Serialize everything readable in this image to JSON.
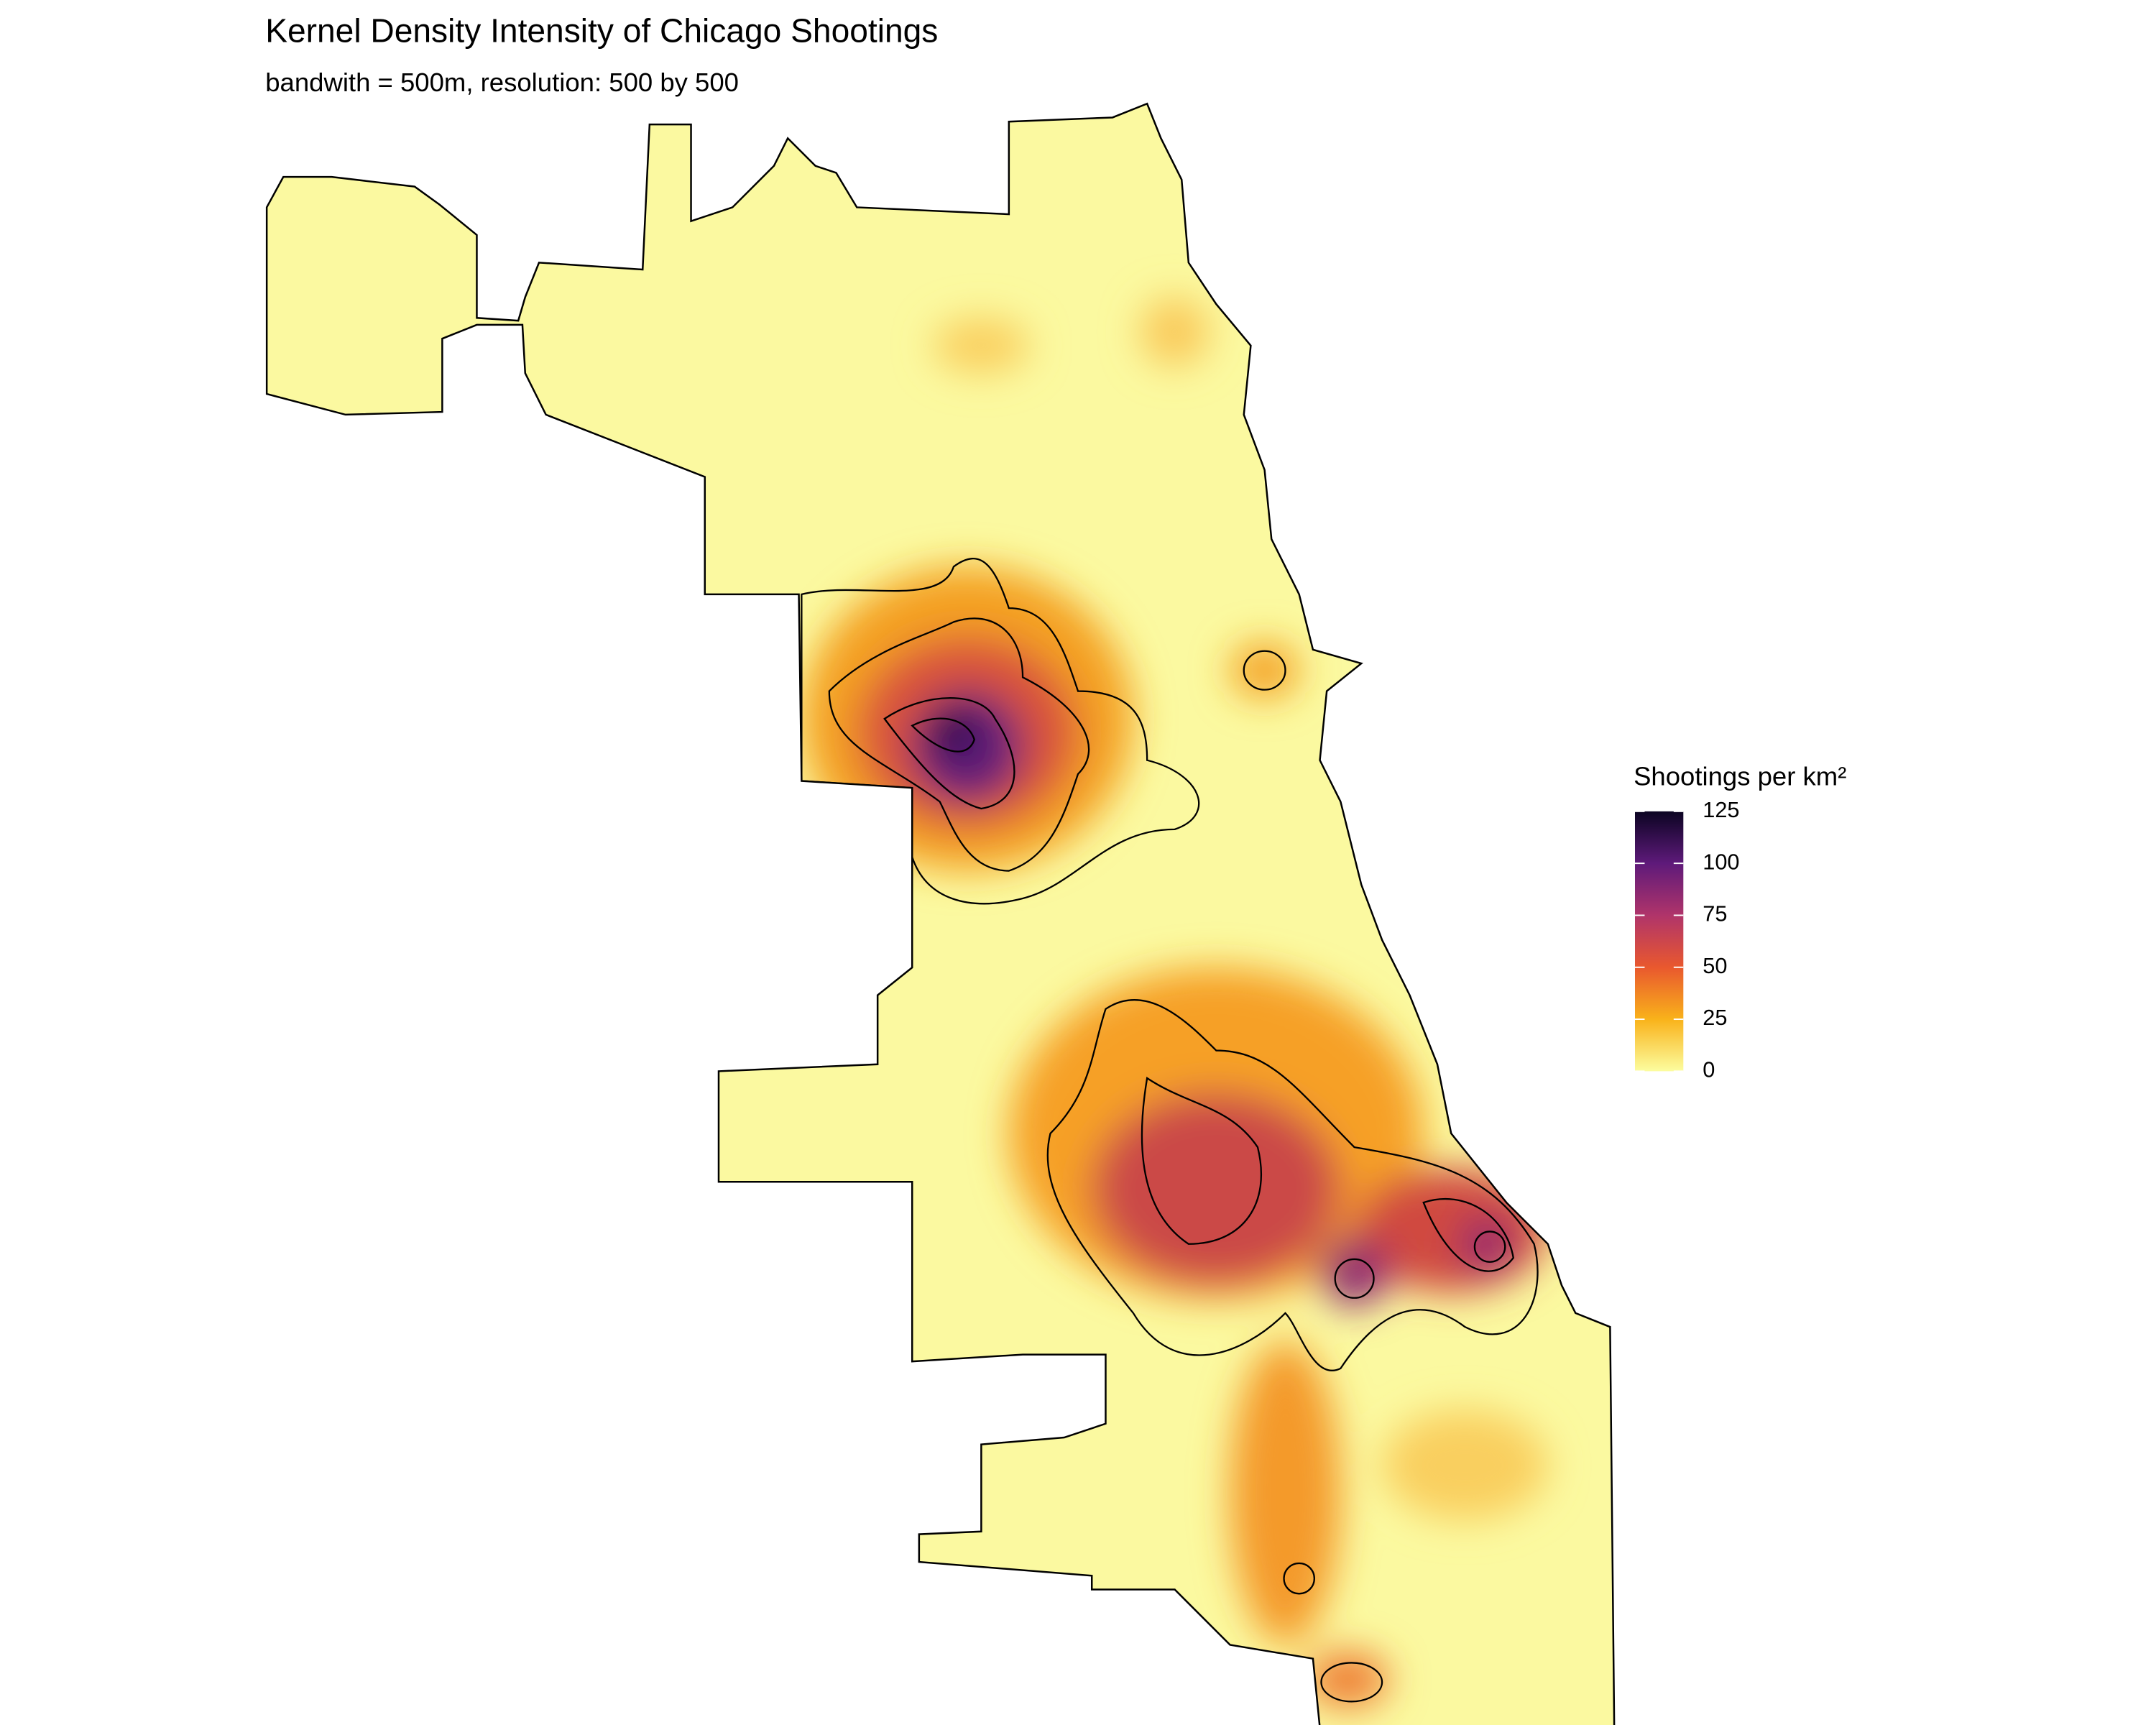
{
  "title": "Kernel Density Intensity of Chicago Shootings",
  "subtitle": "bandwith = 500m, resolution: 500 by 500",
  "legend": {
    "title": "Shootings per km²",
    "range": [
      0,
      125
    ],
    "ticks": [
      0,
      25,
      50,
      75,
      100,
      125
    ],
    "colors": [
      "#fcfd9f",
      "#f9b21a",
      "#e9582e",
      "#b0346a",
      "#5e1a7a",
      "#0b0422"
    ]
  }
}
